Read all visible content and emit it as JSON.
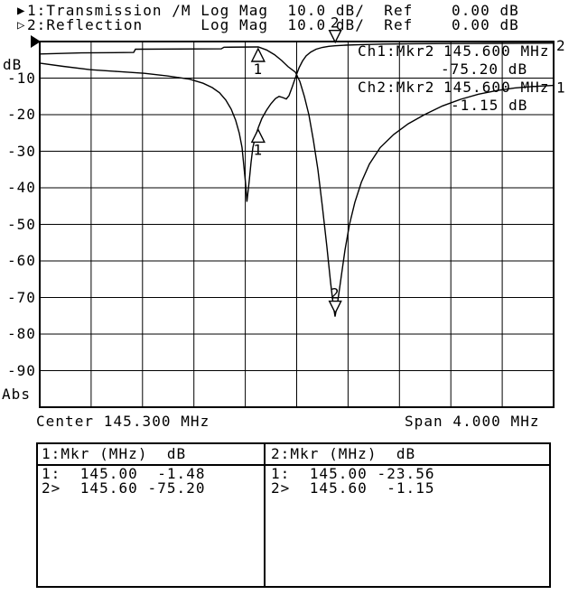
{
  "colors": {
    "foreground": "#000000",
    "background": "#ffffff"
  },
  "header": {
    "ch1_indicator": "▶",
    "ch1_text": "1:Transmission /M Log Mag  10.0 dB/  Ref    0.00 dB",
    "ch2_indicator": "▷",
    "ch2_text": "2:Reflection      Log Mag  10.0 dB/  Ref    0.00 dB"
  },
  "axis": {
    "unit_label": "dB",
    "bottom_label": "Abs",
    "tick_labels": [
      "-10",
      "-20",
      "-30",
      "-40",
      "-50",
      "-60",
      "-70",
      "-80",
      "-90"
    ],
    "center_label": "Center 145.300 MHz",
    "span_label": "Span 4.000 MHz"
  },
  "readout": {
    "ch1_label": "Ch1:Mkr2",
    "ch1_freq": "145.600 MHz",
    "ch1_value": "-75.20 dB",
    "ch2_label": "Ch2:Mkr2",
    "ch2_freq": "145.600 MHz",
    "ch2_value": "-1.15 dB"
  },
  "marker_table": {
    "left": {
      "header": "1:Mkr (MHz)  dB",
      "rows": [
        "1:  145.00  -1.48",
        "2>  145.60 -75.20"
      ]
    },
    "right": {
      "header": "2:Mkr (MHz)  dB",
      "rows": [
        "1:  145.00 -23.56",
        "2>  145.60  -1.15"
      ]
    }
  },
  "chart_data": {
    "type": "line",
    "title": "",
    "xlabel": "Frequency (MHz), Center 145.300 MHz, Span 4.000 MHz",
    "ylabel": "dB (Log Mag, 10.0 dB/div, Ref 0.00 dB, Abs)",
    "xlim": [
      143.3,
      147.3
    ],
    "ylim": [
      -100,
      0
    ],
    "x_divisions": 10,
    "y_divisions": 10,
    "grid": true,
    "series": [
      {
        "id": "1",
        "name": "1:Transmission /M",
        "points": [
          [
            143.3,
            -3.4
          ],
          [
            143.623,
            -3.1
          ],
          [
            144.031,
            -3.0
          ],
          [
            144.045,
            -2.1
          ],
          [
            144.713,
            -2.0
          ],
          [
            144.734,
            -1.55
          ],
          [
            145.001,
            -1.48
          ],
          [
            145.065,
            -2.3
          ],
          [
            145.128,
            -3.6
          ],
          [
            145.184,
            -5.2
          ],
          [
            145.233,
            -6.9
          ],
          [
            145.29,
            -8.4
          ],
          [
            145.325,
            -11
          ],
          [
            145.36,
            -15
          ],
          [
            145.395,
            -20
          ],
          [
            145.43,
            -27
          ],
          [
            145.465,
            -35
          ],
          [
            145.5,
            -45
          ],
          [
            145.535,
            -56
          ],
          [
            145.564,
            -66
          ],
          [
            145.585,
            -72
          ],
          [
            145.599,
            -75.2
          ],
          [
            145.62,
            -71
          ],
          [
            145.648,
            -64
          ],
          [
            145.676,
            -57
          ],
          [
            145.711,
            -50
          ],
          [
            145.753,
            -44
          ],
          [
            145.803,
            -38.5
          ],
          [
            145.866,
            -33.5
          ],
          [
            145.95,
            -29
          ],
          [
            146.056,
            -25.4
          ],
          [
            146.168,
            -22.5
          ],
          [
            146.295,
            -20
          ],
          [
            146.435,
            -17.6
          ],
          [
            146.576,
            -15.8
          ],
          [
            146.716,
            -14.4
          ],
          [
            146.857,
            -13.4
          ],
          [
            146.998,
            -12.7
          ],
          [
            147.138,
            -12.3
          ],
          [
            147.3,
            -12.0
          ]
        ]
      },
      {
        "id": "2",
        "name": "2:Reflection",
        "points": [
          [
            143.3,
            -5.9
          ],
          [
            143.483,
            -6.8
          ],
          [
            143.694,
            -7.7
          ],
          [
            143.905,
            -8.2
          ],
          [
            144.115,
            -8.7
          ],
          [
            144.291,
            -9.4
          ],
          [
            144.467,
            -10.3
          ],
          [
            144.572,
            -11.4
          ],
          [
            144.643,
            -12.6
          ],
          [
            144.699,
            -14.0
          ],
          [
            144.748,
            -16.0
          ],
          [
            144.79,
            -18.5
          ],
          [
            144.825,
            -21.5
          ],
          [
            144.853,
            -25.0
          ],
          [
            144.875,
            -29.0
          ],
          [
            144.889,
            -34.0
          ],
          [
            144.903,
            -39.0
          ],
          [
            144.913,
            -43.8
          ],
          [
            144.931,
            -38.0
          ],
          [
            144.945,
            -33.0
          ],
          [
            144.959,
            -29.0
          ],
          [
            144.98,
            -25.8
          ],
          [
            145.001,
            -23.56
          ],
          [
            145.029,
            -21.0
          ],
          [
            145.065,
            -18.8
          ],
          [
            145.1,
            -17.0
          ],
          [
            145.135,
            -15.6
          ],
          [
            145.163,
            -15.0
          ],
          [
            145.191,
            -15.3
          ],
          [
            145.219,
            -15.7
          ],
          [
            145.24,
            -14.8
          ],
          [
            145.268,
            -12.2
          ],
          [
            145.296,
            -9.3
          ],
          [
            145.318,
            -7.2
          ],
          [
            145.346,
            -5.3
          ],
          [
            145.374,
            -3.9
          ],
          [
            145.409,
            -2.9
          ],
          [
            145.451,
            -2.1
          ],
          [
            145.5,
            -1.6
          ],
          [
            145.55,
            -1.3
          ],
          [
            145.599,
            -1.15
          ],
          [
            145.683,
            -1.0
          ],
          [
            145.803,
            -0.85
          ],
          [
            145.978,
            -0.7
          ],
          [
            146.224,
            -0.6
          ],
          [
            146.506,
            -0.55
          ],
          [
            146.857,
            -0.5
          ],
          [
            147.3,
            -0.45
          ]
        ]
      }
    ],
    "markers": [
      {
        "trace": "1",
        "n": "1",
        "mhz": 145.0,
        "db": -1.48,
        "dir": "up"
      },
      {
        "trace": "2",
        "n": "1",
        "mhz": 145.0,
        "db": -23.56,
        "dir": "up"
      },
      {
        "trace": "1",
        "n": "2",
        "mhz": 145.6,
        "db": -75.2,
        "dir": "down"
      },
      {
        "trace": "2",
        "n": "2",
        "mhz": 145.6,
        "db": -1.15,
        "dir": "down"
      }
    ],
    "reference_level_db": 0,
    "legend_position": "none"
  }
}
